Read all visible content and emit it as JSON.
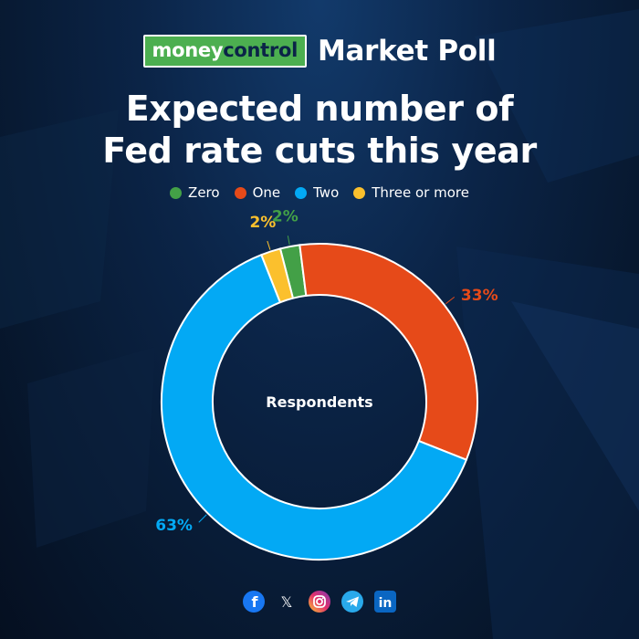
{
  "header": {
    "logo_part1": "money",
    "logo_part2": "control",
    "poll_label": "Market Poll",
    "title_line1": "Expected number of",
    "title_line2": "Fed rate cuts this year"
  },
  "chart_data": {
    "type": "pie",
    "donut": true,
    "center_label": "Respondents",
    "title": "Expected number of Fed rate cuts this year",
    "legend_position": "top",
    "slices": [
      {
        "label": "Zero",
        "value": 2,
        "display": "2%",
        "color": "#43a047"
      },
      {
        "label": "One",
        "value": 33,
        "display": "33%",
        "color": "#e64a19"
      },
      {
        "label": "Two",
        "value": 63,
        "display": "63%",
        "color": "#03a9f4"
      },
      {
        "label": "Three or more",
        "value": 2,
        "display": "2%",
        "color": "#fbc02d"
      }
    ]
  },
  "footer": {
    "social_icons": [
      "facebook-icon",
      "x-icon",
      "instagram-icon",
      "telegram-icon",
      "linkedin-icon"
    ]
  }
}
